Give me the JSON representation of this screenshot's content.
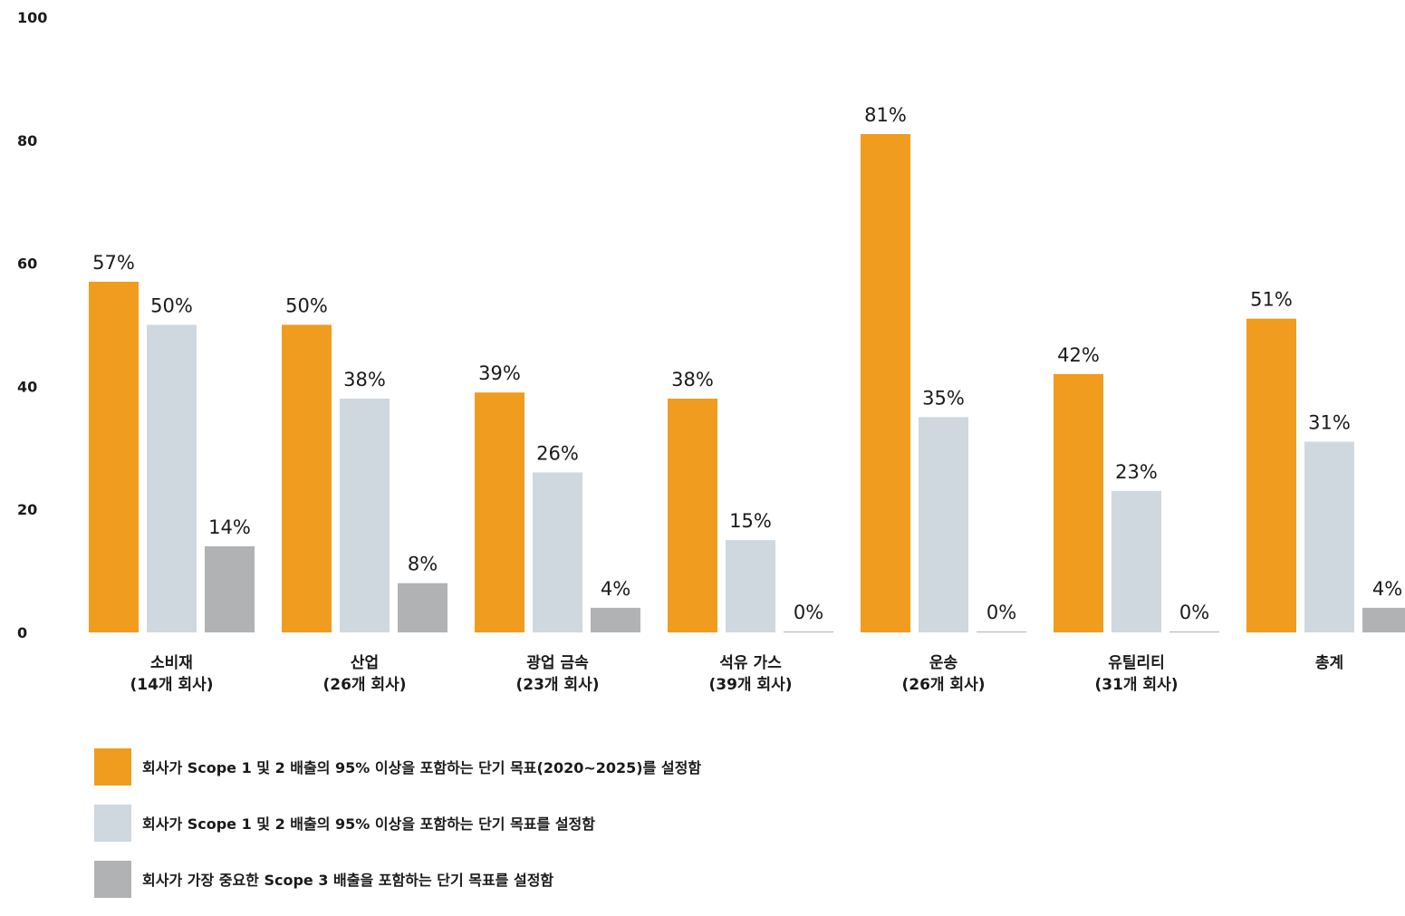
{
  "chart_data": {
    "type": "bar",
    "categories": [
      [
        "소비재",
        "(14개 회사)"
      ],
      [
        "산업",
        "(26개 회사)"
      ],
      [
        "광업 금속",
        "(23개 회사)"
      ],
      [
        "석유 가스",
        "(39개 회사)"
      ],
      [
        "운송",
        "(26개 회사)"
      ],
      [
        "유틸리티",
        "(31개 회사)"
      ],
      [
        "총계"
      ]
    ],
    "series": [
      {
        "name": "회사가 Scope 1 및 2 배출의 95% 이상을 포함하는 단기 목표(2020~2025)를 설정함",
        "color": "#F09C1F",
        "values": [
          57,
          50,
          39,
          38,
          81,
          42,
          51
        ],
        "labels": [
          "57%",
          "50%",
          "39%",
          "38%",
          "81%",
          "42%",
          "51%"
        ]
      },
      {
        "name": "회사가 Scope 1 및 2 배출의 95% 이상을 포함하는 단기 목표를 설정함",
        "color": "#CFD8DF",
        "values": [
          50,
          38,
          26,
          15,
          35,
          23,
          31
        ],
        "labels": [
          "50%",
          "38%",
          "26%",
          "15%",
          "35%",
          "23%",
          "31%"
        ]
      },
      {
        "name": "회사가 가장 중요한 Scope 3 배출을 포함하는 단기 목표를 설정함",
        "color": "#B1B2B4",
        "values": [
          14,
          8,
          4,
          0,
          0,
          0,
          4
        ],
        "labels": [
          "14%",
          "8%",
          "4%",
          "0%",
          "0%",
          "0%",
          "4%"
        ]
      }
    ],
    "yticks": [
      "0",
      "20",
      "40",
      "60",
      "80",
      "100"
    ],
    "ylim": [
      0,
      100
    ],
    "title": "",
    "xlabel": "",
    "ylabel": "",
    "grid": false,
    "legend_position": "bottom-left"
  }
}
